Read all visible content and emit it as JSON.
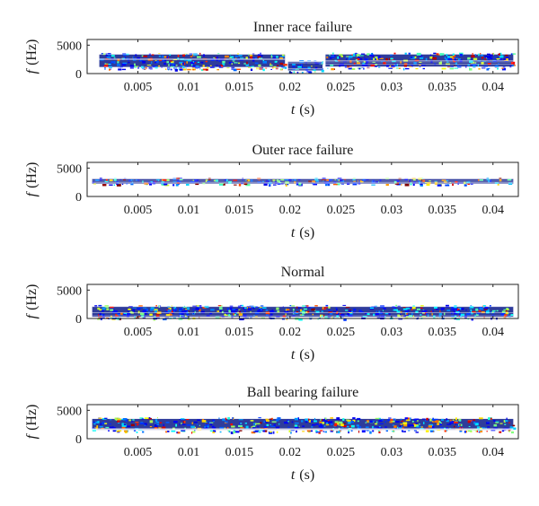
{
  "chart_data": [
    {
      "type": "heatmap",
      "title": "Inner race failure",
      "xlabel_var": "t",
      "xlabel_unit": "(s)",
      "ylabel_var": "f",
      "ylabel_unit": "(Hz)",
      "xlim": [
        0,
        0.0425
      ],
      "ylim": [
        0,
        6000
      ],
      "xticks": [
        0.005,
        0.01,
        0.015,
        0.02,
        0.025,
        0.03,
        0.035,
        0.04
      ],
      "yticks": [
        0,
        5000
      ],
      "segments": [
        {
          "t0": 0.0012,
          "t1": 0.0195,
          "f0": 800,
          "f1": 3700,
          "intensity": 0.55
        },
        {
          "t0": 0.0198,
          "t1": 0.0232,
          "f0": 300,
          "f1": 2400,
          "intensity": 0.25
        },
        {
          "t0": 0.0235,
          "t1": 0.042,
          "f0": 900,
          "f1": 3700,
          "intensity": 0.6
        }
      ]
    },
    {
      "type": "heatmap",
      "title": "Outer race failure",
      "xlabel_var": "t",
      "xlabel_unit": "(s)",
      "ylabel_var": "f",
      "ylabel_unit": "(Hz)",
      "xlim": [
        0,
        0.0425
      ],
      "ylim": [
        0,
        6000
      ],
      "xticks": [
        0.005,
        0.01,
        0.015,
        0.02,
        0.025,
        0.03,
        0.035,
        0.04
      ],
      "yticks": [
        0,
        5000
      ],
      "segments": [
        {
          "t0": 0.0005,
          "t1": 0.042,
          "f0": 2100,
          "f1": 3300,
          "intensity": 0.7
        }
      ]
    },
    {
      "type": "heatmap",
      "title": "Normal",
      "xlabel_var": "t",
      "xlabel_unit": "(s)",
      "ylabel_var": "f",
      "ylabel_unit": "(Hz)",
      "xlim": [
        0,
        0.0425
      ],
      "ylim": [
        0,
        6000
      ],
      "xticks": [
        0.005,
        0.01,
        0.015,
        0.02,
        0.025,
        0.03,
        0.035,
        0.04
      ],
      "yticks": [
        0,
        5000
      ],
      "segments": [
        {
          "t0": 0.0005,
          "t1": 0.042,
          "f0": 0,
          "f1": 2400,
          "intensity": 0.6
        }
      ]
    },
    {
      "type": "heatmap",
      "title": "Ball bearing failure",
      "xlabel_var": "t",
      "xlabel_unit": "(s)",
      "ylabel_var": "f",
      "ylabel_unit": "(Hz)",
      "xlim": [
        0,
        0.0425
      ],
      "ylim": [
        0,
        6000
      ],
      "xticks": [
        0.005,
        0.01,
        0.015,
        0.02,
        0.025,
        0.03,
        0.035,
        0.04
      ],
      "yticks": [
        0,
        5000
      ],
      "segments": [
        {
          "t0": 0.0005,
          "t1": 0.042,
          "f0": 1200,
          "f1": 3800,
          "intensity": 0.6
        }
      ]
    }
  ]
}
